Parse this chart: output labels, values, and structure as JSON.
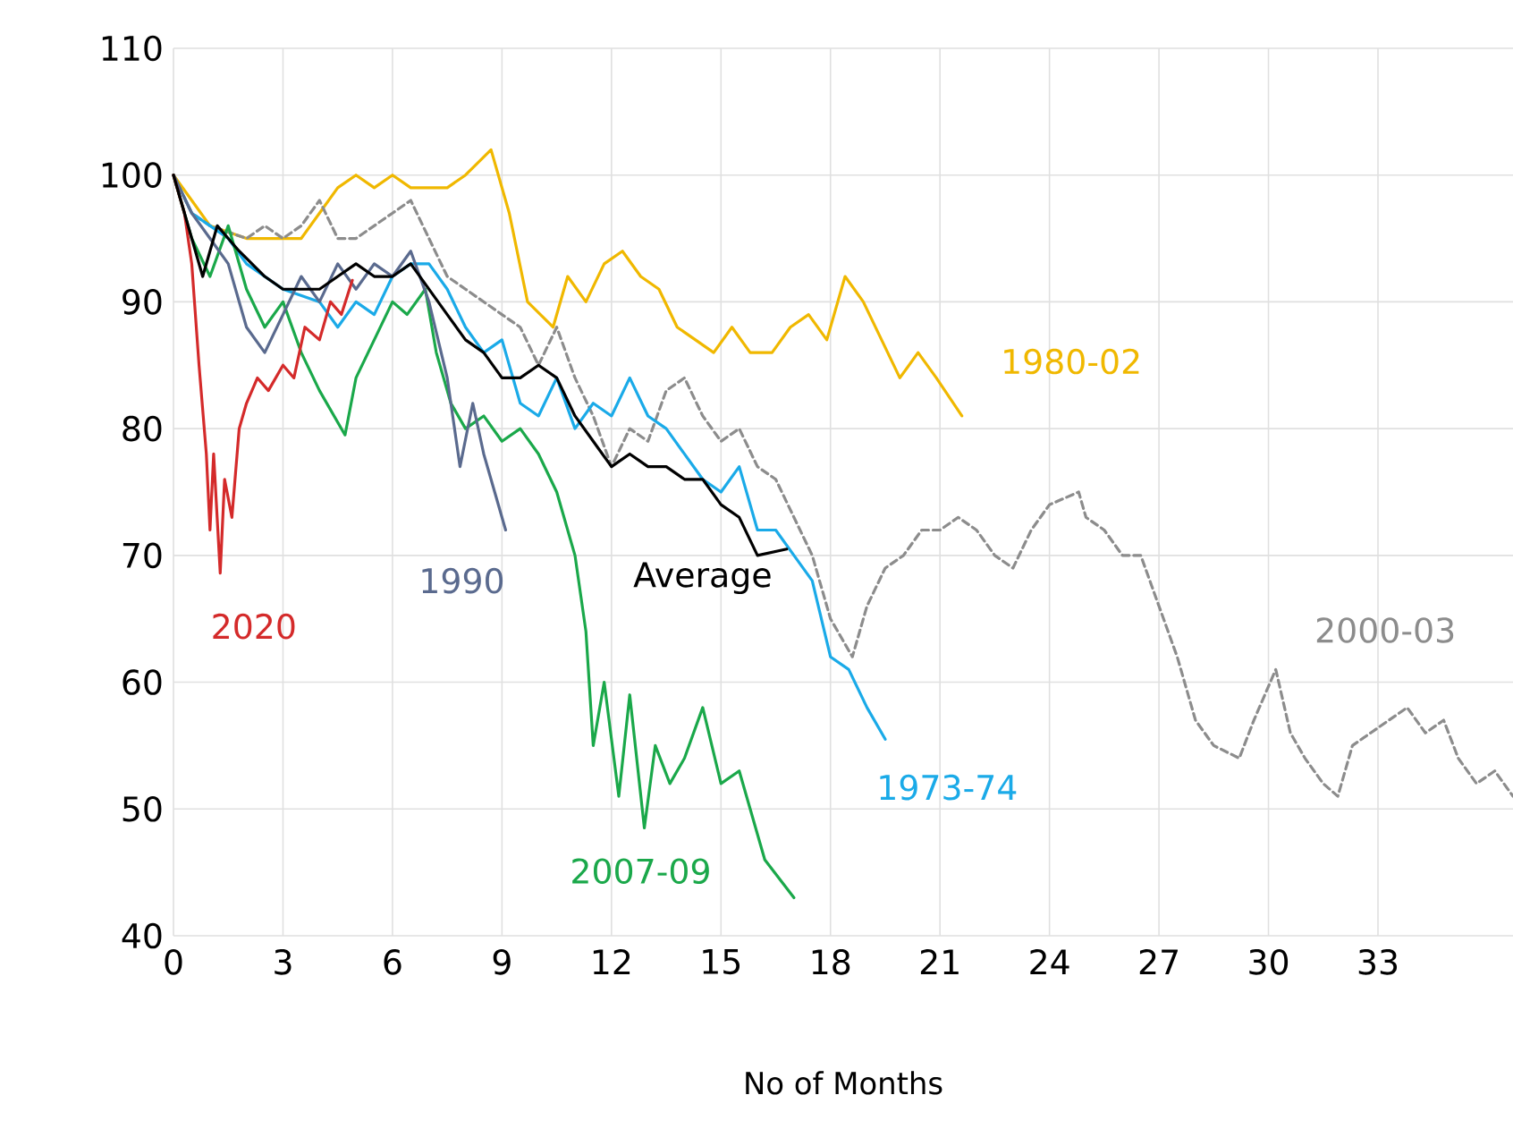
{
  "chart_data": {
    "type": "line",
    "xlabel": "No of Months",
    "xlim": [
      0,
      36.7
    ],
    "ylim": [
      40,
      110
    ],
    "xticks": [
      0,
      3,
      6,
      9,
      12,
      15,
      18,
      21,
      24,
      27,
      30,
      33
    ],
    "yticks": [
      40,
      50,
      60,
      70,
      80,
      90,
      100,
      110
    ],
    "grid": true,
    "marker": "none",
    "series": [
      {
        "name": "1980-02",
        "color": "#f0b800",
        "line_style": "solid",
        "x": [
          0,
          0.5,
          1,
          2,
          3,
          3.5,
          4,
          4.5,
          5,
          5.5,
          6,
          6.5,
          7,
          7.5,
          8,
          8.7,
          9.2,
          9.7,
          10.4,
          10.8,
          11.3,
          11.8,
          12.3,
          12.8,
          13.3,
          13.8,
          14.3,
          14.8,
          15.3,
          15.8,
          16.4,
          16.9,
          17.4,
          17.9,
          18.4,
          18.9,
          19.4,
          19.9,
          20.4,
          20.9,
          21.6
        ],
        "values": [
          100,
          98,
          96,
          95,
          95,
          95,
          97,
          99,
          100,
          99,
          100,
          99,
          99,
          99,
          100,
          102,
          97,
          90,
          88,
          92,
          90,
          93,
          94,
          92,
          91,
          88,
          87,
          86,
          88,
          86,
          86,
          88,
          89,
          87,
          92,
          90,
          87,
          84,
          86,
          84,
          81
        ]
      },
      {
        "name": "2000-03",
        "color": "#8c8c8c",
        "line_style": "dashed",
        "x": [
          0,
          0.5,
          1,
          2,
          2.5,
          3,
          3.5,
          4,
          4.5,
          5,
          5.5,
          6,
          6.5,
          7,
          7.5,
          8,
          9,
          9.5,
          10,
          10.5,
          11,
          11.5,
          12,
          12.5,
          13,
          13.5,
          14,
          14.5,
          15,
          15.5,
          16,
          16.5,
          17,
          17.5,
          18,
          18.6,
          19,
          19.5,
          20,
          20.5,
          21,
          21.5,
          22,
          22.5,
          23,
          23.5,
          24,
          24.8,
          25,
          25.5,
          26,
          26.5,
          27,
          27.5,
          28,
          28.5,
          29.2,
          29.6,
          30.2,
          30.6,
          31,
          31.5,
          31.9,
          32.3,
          32.8,
          33.3,
          33.8,
          34.3,
          34.8,
          35.2,
          35.7,
          36.2,
          36.7
        ],
        "values": [
          100,
          97,
          96,
          95,
          96,
          95,
          96,
          98,
          95,
          95,
          96,
          97,
          98,
          95,
          92,
          91,
          89,
          88,
          85,
          88,
          84,
          81,
          77,
          80,
          79,
          83,
          84,
          81,
          79,
          80,
          77,
          76,
          73,
          70,
          65,
          62,
          66,
          69,
          70,
          72,
          72,
          73,
          72,
          70,
          69,
          72,
          74,
          75,
          73,
          72,
          70,
          70,
          66,
          62,
          57,
          55,
          54,
          57,
          61,
          56,
          54,
          52,
          51,
          55,
          56,
          57,
          58,
          56,
          57,
          54,
          52,
          53,
          51
        ]
      },
      {
        "name": "1973-74",
        "color": "#1aaae8",
        "line_style": "solid",
        "x": [
          0,
          0.5,
          1,
          1.5,
          2,
          2.5,
          3,
          4,
          4.5,
          5,
          5.5,
          6,
          6.5,
          7,
          7.5,
          8,
          8.5,
          9,
          9.5,
          10,
          10.5,
          11,
          11.5,
          12,
          12.5,
          13,
          13.5,
          14,
          14.5,
          15,
          15.5,
          16,
          16.5,
          17,
          17.5,
          18,
          18.5,
          19,
          19.5
        ],
        "values": [
          100,
          97,
          96,
          95,
          93,
          92,
          91,
          90,
          88,
          90,
          89,
          92,
          93,
          93,
          91,
          88,
          86,
          87,
          82,
          81,
          84,
          80,
          82,
          81,
          84,
          81,
          80,
          78,
          76,
          75,
          77,
          72,
          72,
          70,
          68,
          62,
          61,
          58,
          55.5
        ]
      },
      {
        "name": "2007-09",
        "color": "#1aa84a",
        "line_style": "solid",
        "x": [
          0,
          0.5,
          1,
          1.5,
          2,
          2.5,
          3,
          3.5,
          4,
          4.7,
          5,
          5.5,
          6,
          6.4,
          6.9,
          7.2,
          7.6,
          8,
          8.5,
          9,
          9.5,
          10,
          10.5,
          11,
          11.3,
          11.5,
          11.8,
          12.2,
          12.5,
          12.9,
          13.2,
          13.6,
          14,
          14.5,
          15,
          15.5,
          15.8,
          16.2,
          17
        ],
        "values": [
          100,
          95,
          92,
          96,
          91,
          88,
          90,
          86,
          83,
          79.5,
          84,
          87,
          90,
          89,
          91,
          86,
          82,
          80,
          81,
          79,
          80,
          78,
          75,
          70,
          64,
          55,
          60,
          51,
          59,
          48.5,
          55,
          52,
          54,
          58,
          52,
          53,
          50,
          46,
          43
        ]
      },
      {
        "name": "1990",
        "color": "#5a6a8e",
        "line_style": "solid",
        "x": [
          0,
          0.5,
          1,
          1.5,
          2,
          2.5,
          3,
          3.5,
          4,
          4.5,
          5,
          5.5,
          6,
          6.5,
          7,
          7.5,
          7.85,
          8.2,
          8.5,
          8.8,
          9.1
        ],
        "values": [
          100,
          97,
          95,
          93,
          88,
          86,
          89,
          92,
          90,
          93,
          91,
          93,
          92,
          94,
          90,
          84,
          77,
          82,
          78,
          75,
          72
        ]
      },
      {
        "name": "2020",
        "color": "#d42a2a",
        "line_style": "solid",
        "x": [
          0,
          0.3,
          0.5,
          0.7,
          0.9,
          1.0,
          1.1,
          1.28,
          1.4,
          1.6,
          1.8,
          2.0,
          2.3,
          2.6,
          3.0,
          3.3,
          3.6,
          4.0,
          4.3,
          4.6,
          4.9
        ],
        "values": [
          100,
          97,
          93,
          85,
          78,
          72,
          78,
          68.6,
          76,
          73,
          80,
          82,
          84,
          83,
          85,
          84,
          88,
          87,
          90,
          89,
          91.7
        ]
      },
      {
        "name": "Average",
        "color": "#000000",
        "line_style": "solid",
        "x": [
          0,
          0.5,
          0.8,
          1.2,
          1.8,
          2.5,
          3,
          3.5,
          4,
          4.5,
          5,
          5.5,
          6,
          6.5,
          7,
          7.5,
          8,
          8.5,
          9,
          9.5,
          10,
          10.5,
          11,
          11.5,
          12,
          12.5,
          13,
          13.5,
          14,
          14.5,
          15,
          15.5,
          16,
          16.8
        ],
        "values": [
          100,
          95,
          92,
          96,
          94,
          92,
          91,
          91,
          91,
          92,
          93,
          92,
          92,
          93,
          91,
          89,
          87,
          86,
          84,
          84,
          85,
          84,
          81,
          79,
          77,
          78,
          77,
          77,
          76,
          76,
          74,
          73,
          70,
          70.5
        ]
      }
    ]
  }
}
